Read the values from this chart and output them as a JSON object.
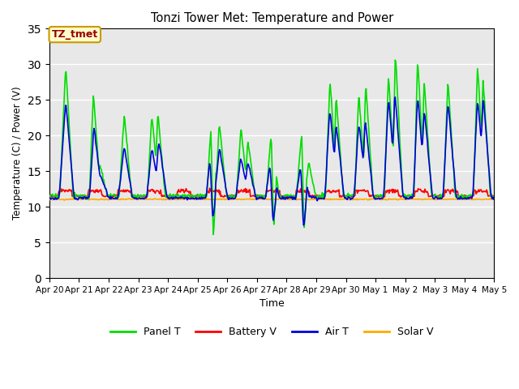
{
  "title": "Tonzi Tower Met: Temperature and Power",
  "xlabel": "Time",
  "ylabel": "Temperature (C) / Power (V)",
  "annotation": "TZ_tmet",
  "ylim": [
    0,
    35
  ],
  "yticks": [
    0,
    5,
    10,
    15,
    20,
    25,
    30,
    35
  ],
  "date_labels": [
    "Apr 20",
    "Apr 21",
    "Apr 22",
    "Apr 23",
    "Apr 24",
    "Apr 25",
    "Apr 26",
    "Apr 27",
    "Apr 28",
    "Apr 29",
    "Apr 30",
    "May 1",
    "May 2",
    "May 3",
    "May 4",
    "May 5"
  ],
  "line_colors": {
    "Panel T": "#00dd00",
    "Battery V": "#ff0000",
    "Air T": "#0000dd",
    "Solar V": "#ffaa00"
  },
  "bg_color": "#e8e8e8",
  "days": 15,
  "seed": 17
}
